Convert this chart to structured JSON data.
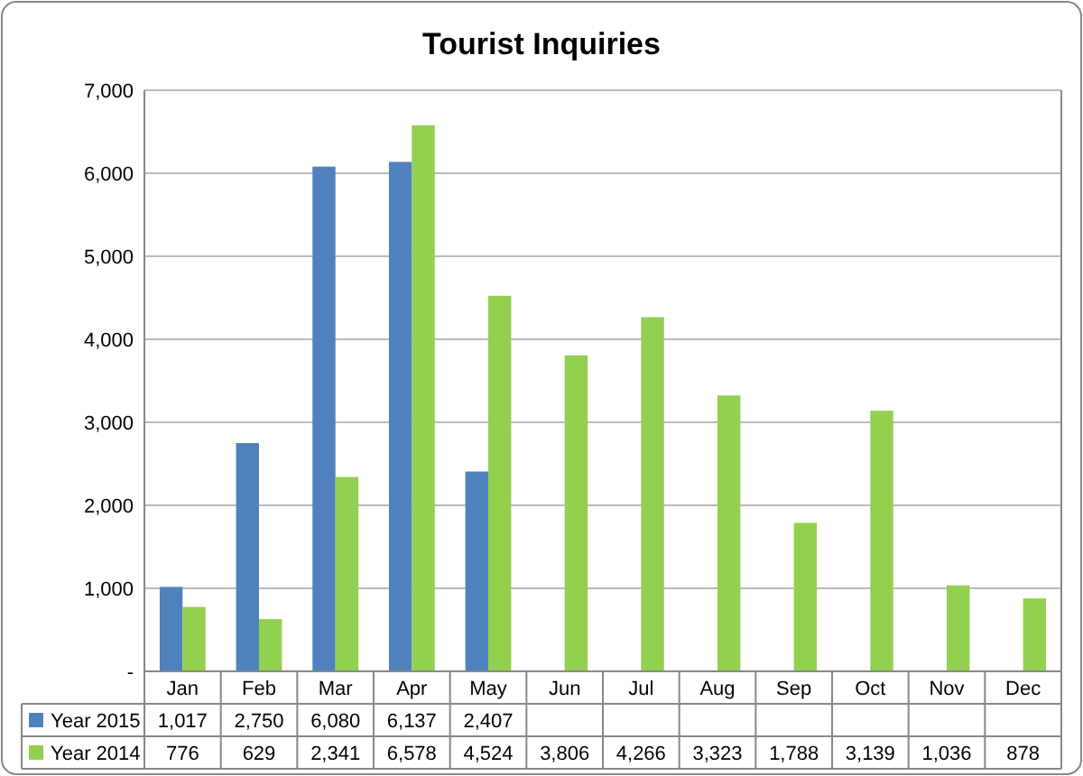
{
  "chart_data": {
    "type": "bar",
    "title": "Tourist Inquiries",
    "categories": [
      "Jan",
      "Feb",
      "Mar",
      "Apr",
      "May",
      "Jun",
      "Jul",
      "Aug",
      "Sep",
      "Oct",
      "Nov",
      "Dec"
    ],
    "series": [
      {
        "name": "Year 2015",
        "color": "#4f81bd",
        "values": [
          1017,
          2750,
          6080,
          6137,
          2407,
          null,
          null,
          null,
          null,
          null,
          null,
          null
        ],
        "value_labels": [
          "1,017",
          "2,750",
          "6,080",
          "6,137",
          "2,407",
          null,
          null,
          null,
          null,
          null,
          null,
          null
        ]
      },
      {
        "name": "Year 2014",
        "color": "#92d050",
        "values": [
          776,
          629,
          2341,
          6578,
          4524,
          3806,
          4266,
          3323,
          1788,
          3139,
          1036,
          878
        ],
        "value_labels": [
          "776",
          "629",
          "2,341",
          "6,578",
          "4,524",
          "3,806",
          "4,266",
          "3,323",
          "1,788",
          "3,139",
          "1,036",
          "878"
        ]
      }
    ],
    "ylim": [
      0,
      7000
    ],
    "yticks": [
      {
        "value": 0,
        "label": "-"
      },
      {
        "value": 1000,
        "label": "1,000"
      },
      {
        "value": 2000,
        "label": "2,000"
      },
      {
        "value": 3000,
        "label": "3,000"
      },
      {
        "value": 4000,
        "label": "4,000"
      },
      {
        "value": 5000,
        "label": "5,000"
      },
      {
        "value": 6000,
        "label": "6,000"
      },
      {
        "value": 7000,
        "label": "7,000"
      }
    ],
    "grid": "y",
    "legend": "bottom"
  }
}
